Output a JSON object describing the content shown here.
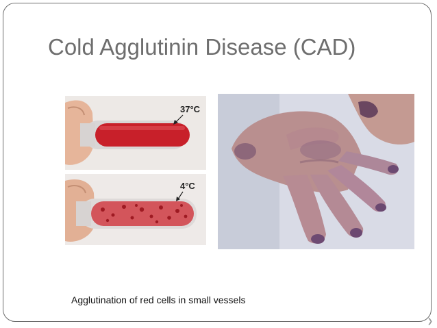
{
  "slide": {
    "title": "Cold Agglutinin Disease (CAD)",
    "caption": "Agglutination of red cells in small vessels",
    "nav_glyph": "❯"
  },
  "figure_left": {
    "top_tube_temp": "37°C",
    "bottom_tube_temp": "4°C"
  },
  "colors": {
    "frame_border": "#6b6b6b",
    "title": "#6e6e6e",
    "blood": "#c8202a"
  }
}
